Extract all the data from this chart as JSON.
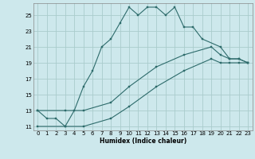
{
  "xlabel": "Humidex (Indice chaleur)",
  "bg_color": "#cde8ec",
  "grid_color": "#aacccc",
  "line_color": "#2d6b6b",
  "xlim": [
    -0.5,
    23.5
  ],
  "ylim": [
    10.5,
    26.5
  ],
  "xticks": [
    0,
    1,
    2,
    3,
    4,
    5,
    6,
    7,
    8,
    9,
    10,
    11,
    12,
    13,
    14,
    15,
    16,
    17,
    18,
    19,
    20,
    21,
    22,
    23
  ],
  "yticks": [
    11,
    13,
    15,
    17,
    19,
    21,
    23,
    25
  ],
  "line1_x": [
    0,
    1,
    2,
    3,
    4,
    5,
    6,
    7,
    8,
    9,
    10,
    11,
    12,
    13,
    14,
    15,
    16,
    17,
    18,
    20,
    21,
    22,
    23
  ],
  "line1_y": [
    13,
    12,
    12,
    11,
    13,
    16,
    18,
    21,
    22,
    24,
    26,
    25,
    26,
    26,
    25,
    26,
    23.5,
    23.5,
    22,
    21,
    19.5,
    19.5,
    19
  ],
  "line2_x": [
    0,
    3,
    5,
    8,
    10,
    13,
    16,
    19,
    20,
    21,
    22,
    23
  ],
  "line2_y": [
    13,
    13,
    13,
    14,
    16,
    18.5,
    20,
    21,
    20,
    19.5,
    19.5,
    19
  ],
  "line3_x": [
    0,
    3,
    5,
    8,
    10,
    13,
    16,
    19,
    20,
    21,
    22,
    23
  ],
  "line3_y": [
    11,
    11,
    11,
    12,
    13.5,
    16,
    18,
    19.5,
    19,
    19,
    19,
    19
  ]
}
